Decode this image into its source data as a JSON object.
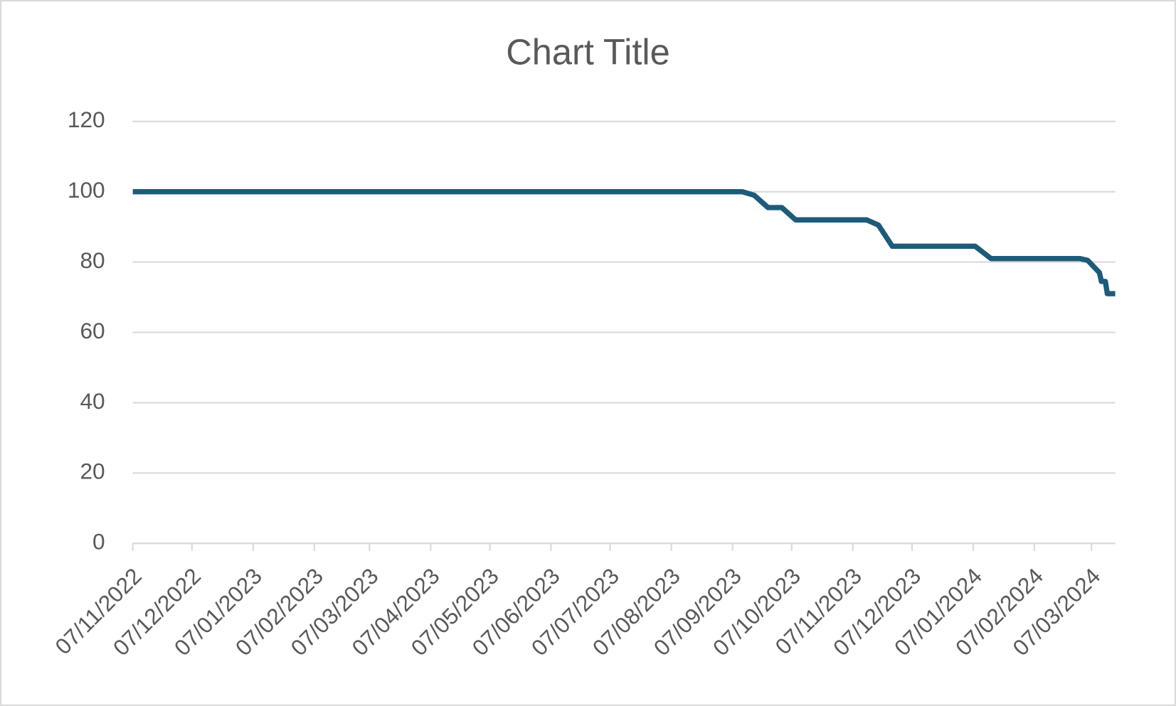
{
  "chart_data": {
    "type": "line",
    "title": "Chart Title",
    "x": [
      "2022-11-07",
      "2023-09-12",
      "2023-09-18",
      "2023-09-25",
      "2023-10-02",
      "2023-10-09",
      "2023-11-14",
      "2023-11-20",
      "2023-11-27",
      "2024-01-08",
      "2024-01-16",
      "2024-03-01",
      "2024-03-05",
      "2024-03-11",
      "2024-03-12",
      "2024-03-14",
      "2024-03-15",
      "2024-03-19"
    ],
    "series": [
      {
        "color": "#1d5b79",
        "values": [
          100,
          100,
          99,
          95.5,
          95.5,
          92,
          92,
          90.5,
          84.5,
          84.5,
          81,
          81,
          80.5,
          77,
          74.5,
          74.5,
          71,
          71
        ]
      }
    ],
    "xlim": [
      "2022-11-07",
      "2024-03-19"
    ],
    "xticks": [
      {
        "value": "2022-11-07",
        "label": "07/11/2022"
      },
      {
        "value": "2022-12-07",
        "label": "07/12/2022"
      },
      {
        "value": "2023-01-07",
        "label": "07/01/2023"
      },
      {
        "value": "2023-02-07",
        "label": "07/02/2023"
      },
      {
        "value": "2023-03-07",
        "label": "07/03/2023"
      },
      {
        "value": "2023-04-07",
        "label": "07/04/2023"
      },
      {
        "value": "2023-05-07",
        "label": "07/05/2023"
      },
      {
        "value": "2023-06-07",
        "label": "07/06/2023"
      },
      {
        "value": "2023-07-07",
        "label": "07/07/2023"
      },
      {
        "value": "2023-08-07",
        "label": "07/08/2023"
      },
      {
        "value": "2023-09-07",
        "label": "07/09/2023"
      },
      {
        "value": "2023-10-07",
        "label": "07/10/2023"
      },
      {
        "value": "2023-11-07",
        "label": "07/11/2023"
      },
      {
        "value": "2023-12-07",
        "label": "07/12/2023"
      },
      {
        "value": "2024-01-07",
        "label": "07/01/2024"
      },
      {
        "value": "2024-02-07",
        "label": "07/02/2024"
      },
      {
        "value": "2024-03-07",
        "label": "07/03/2024"
      }
    ],
    "ylim": [
      0,
      120
    ],
    "yticks": [
      0,
      20,
      40,
      60,
      80,
      100,
      120
    ],
    "grid": true
  }
}
